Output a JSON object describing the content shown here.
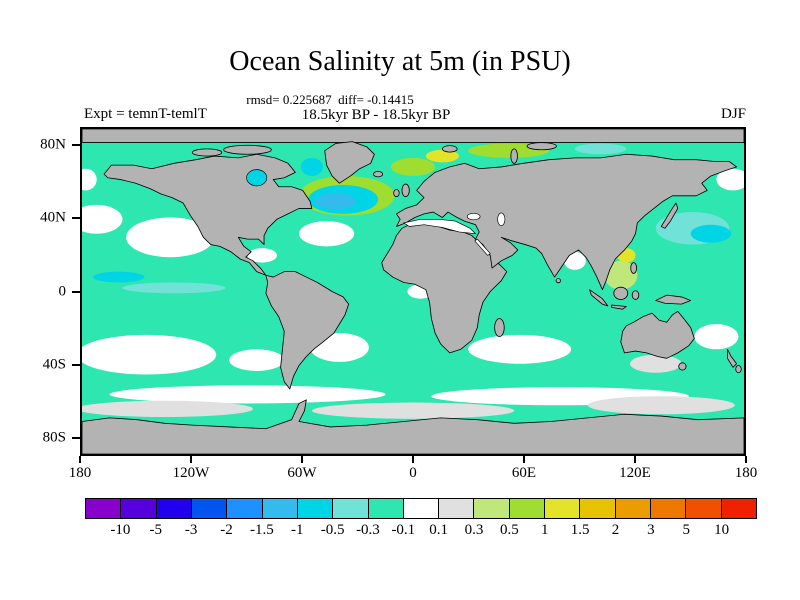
{
  "chart_data": {
    "type": "heatmap",
    "title": "Ocean Salinity at 5m (in PSU)",
    "stats_text": "rmsd= 0.225687  diff= -0.14415",
    "rmsd": 0.225687,
    "diff": -0.14415,
    "period": "18.5kyr BP - 18.5kyr BP",
    "experiment_label": "Expt = temnT-temlT",
    "season": "DJF",
    "units": "PSU",
    "projection": "equirectangular",
    "x_axis": {
      "ticks": [
        "180",
        "120W",
        "60W",
        "0",
        "60E",
        "120E",
        "180"
      ],
      "tick_lons": [
        -180,
        -120,
        -60,
        0,
        60,
        120,
        180
      ],
      "range": [
        -180,
        180
      ]
    },
    "y_axis": {
      "ticks": [
        "80N",
        "40N",
        "0",
        "40S",
        "80S"
      ],
      "tick_lats": [
        80,
        40,
        0,
        -40,
        -80
      ],
      "range": [
        -90,
        90
      ]
    },
    "colorbar": {
      "labels": [
        "-10",
        "-5",
        "-3",
        "-2",
        "-1.5",
        "-1",
        "-0.5",
        "-0.3",
        "-0.1",
        "0.1",
        "0.3",
        "0.5",
        "1",
        "1.5",
        "2",
        "3",
        "5",
        "10"
      ],
      "levels": [
        -10,
        -5,
        -3,
        -2,
        -1.5,
        -1,
        -0.5,
        -0.3,
        -0.1,
        0.1,
        0.3,
        0.5,
        1,
        1.5,
        2,
        3,
        5,
        10
      ],
      "colors": [
        "#8800cc",
        "#5500dd",
        "#2200ee",
        "#0055ee",
        "#1e90ff",
        "#33bbee",
        "#00d5e6",
        "#70e2d8",
        "#2ee6b0",
        "#ffffff",
        "#e0e0e0",
        "#bfe77a",
        "#9fdd30",
        "#e3e32a",
        "#e6c300",
        "#eb9c00",
        "#ee7700",
        "#f05000",
        "#ee2200"
      ]
    },
    "map_colors": {
      "land": "#b3b3b3",
      "coastline": "#000000",
      "background": "#ffffff"
    },
    "regions": [
      {
        "area": "most of global ocean",
        "anomaly_psu": "-0.3 to -0.1"
      },
      {
        "area": "subtropical gyres, eastern Pacific, South Indian Ocean, Bay of Bengal, Mediterranean",
        "anomaly_psu": "-0.1 to 0.1"
      },
      {
        "area": "North Atlantic 40-55N blob",
        "anomaly_psu": "-1.5 to -0.5"
      },
      {
        "area": "rim of North Atlantic blob, Nordic Seas, Arctic fringe",
        "anomaly_psu": "0.5 to 1.5"
      },
      {
        "area": "Southern Ocean band near 55-65S and Great Australian Bight",
        "anomaly_psu": "0.1 to 0.3"
      },
      {
        "area": "South China Sea / Maritime Continent",
        "anomaly_psu": "0.3 to 1.5"
      },
      {
        "area": "Hudson Bay, Baffin Bay, NW Pacific, equatorial Pacific streaks",
        "anomaly_psu": "-1 to -0.3"
      }
    ]
  }
}
